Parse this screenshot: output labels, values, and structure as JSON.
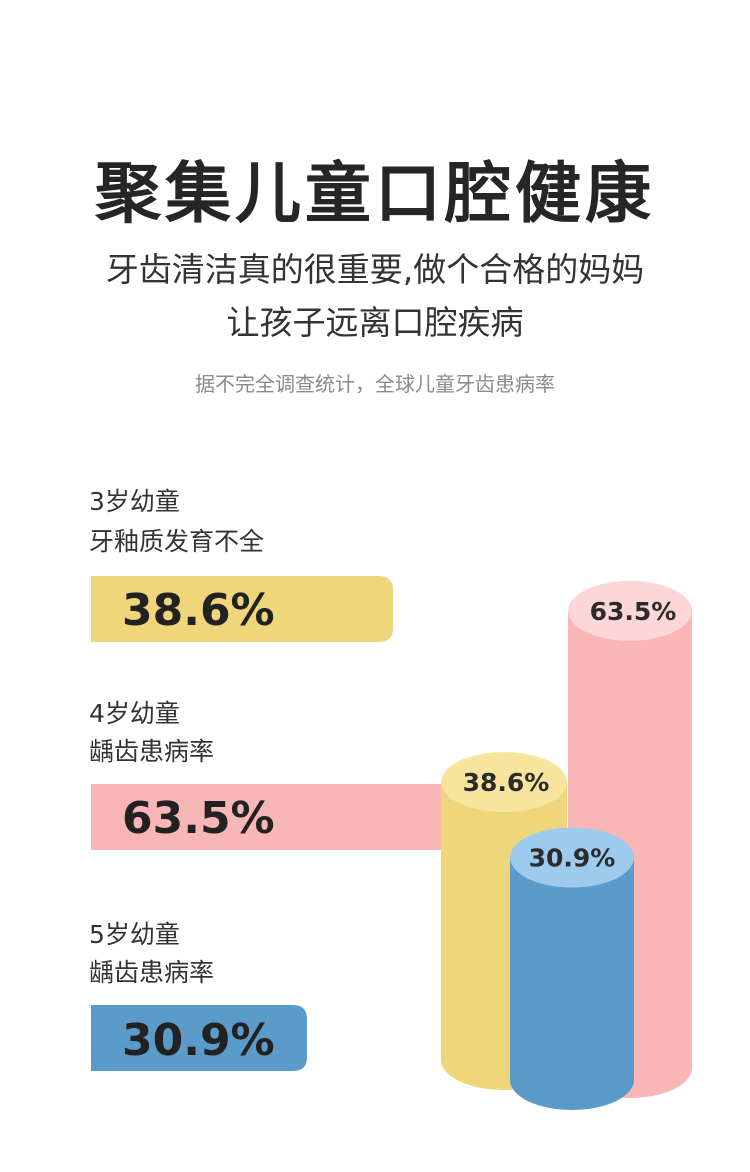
{
  "title": "聚集儿童口腔健康",
  "subtitle_line1": "牙齿清洁真的很重要,做个合格的妈妈",
  "subtitle_line2": "让孩子远离口腔疾病",
  "note": "据不完全调查统计，全球儿童牙齿患病率",
  "colors": {
    "yellow": "#efd67b",
    "yellow_top": "#f7e59e",
    "pink": "#f8b6b7",
    "pink_top": "#fdd7d8",
    "blue": "#5b9bc9",
    "blue_top": "#9dcbee"
  },
  "chart_data": {
    "type": "bar",
    "title": "聚集儿童口腔健康",
    "ylabel": "",
    "xlabel": "",
    "categories": [
      "3岁幼童 牙釉质发育不全",
      "4岁幼童 龋齿患病率",
      "5岁幼童 龋齿患病率"
    ],
    "values": [
      38.6,
      63.5,
      30.9
    ],
    "value_labels": [
      "38.6%",
      "63.5%",
      "30.9%"
    ],
    "items": [
      {
        "age": "3岁幼童",
        "desc": "牙釉质发育不全",
        "value": 38.6,
        "label": "38.6%",
        "color": "yellow"
      },
      {
        "age": "4岁幼童",
        "desc": "龋齿患病率",
        "value": 63.5,
        "label": "63.5%",
        "color": "pink"
      },
      {
        "age": "5岁幼童",
        "desc": "龋齿患病率",
        "value": 30.9,
        "label": "30.9%",
        "color": "blue"
      }
    ]
  }
}
